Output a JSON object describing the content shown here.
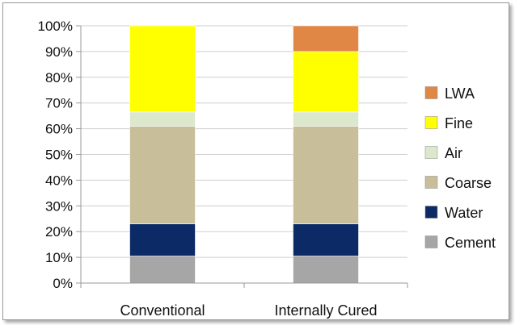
{
  "chart_data": {
    "type": "bar",
    "stacked": true,
    "categories": [
      "Conventional",
      "Internally Cured"
    ],
    "series": [
      {
        "name": "Cement",
        "color": "#a6a6a6",
        "values": [
          10.5,
          10.5
        ]
      },
      {
        "name": "Water",
        "color": "#0b2a66",
        "values": [
          12.5,
          12.5
        ]
      },
      {
        "name": "Coarse",
        "color": "#c8bf9a",
        "values": [
          38,
          38
        ]
      },
      {
        "name": "Air",
        "color": "#dce8cc",
        "values": [
          5.5,
          5.5
        ]
      },
      {
        "name": "Fine",
        "color": "#ffff00",
        "values": [
          33.5,
          23.5
        ]
      },
      {
        "name": "LWA",
        "color": "#e08745",
        "values": [
          0,
          10
        ]
      }
    ],
    "ylim": [
      0,
      100
    ],
    "yticks": [
      "0%",
      "10%",
      "20%",
      "30%",
      "40%",
      "50%",
      "60%",
      "70%",
      "80%",
      "90%",
      "100%"
    ],
    "grid": true,
    "legend": "right",
    "legend_order": [
      "LWA",
      "Fine",
      "Air",
      "Coarse",
      "Water",
      "Cement"
    ]
  }
}
